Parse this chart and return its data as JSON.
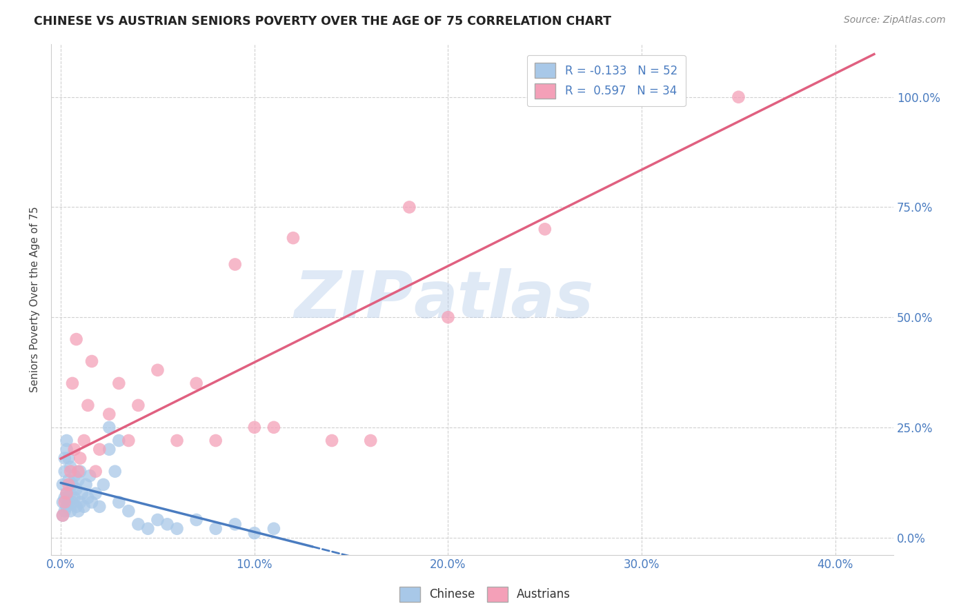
{
  "title": "CHINESE VS AUSTRIAN SENIORS POVERTY OVER THE AGE OF 75 CORRELATION CHART",
  "source": "Source: ZipAtlas.com",
  "xlabel_ticks": [
    "0.0%",
    "10.0%",
    "20.0%",
    "30.0%",
    "40.0%"
  ],
  "xlabel_tick_vals": [
    0.0,
    0.1,
    0.2,
    0.3,
    0.4
  ],
  "ylabel": "Seniors Poverty Over the Age of 75",
  "ylabel_ticks": [
    "0.0%",
    "25.0%",
    "50.0%",
    "75.0%",
    "100.0%"
  ],
  "ylabel_tick_vals": [
    0.0,
    0.25,
    0.5,
    0.75,
    1.0
  ],
  "xlim": [
    -0.005,
    0.43
  ],
  "ylim": [
    -0.04,
    1.12
  ],
  "chinese_color": "#a8c8e8",
  "austrian_color": "#f4a0b8",
  "chinese_line_color": "#4a7cc0",
  "austrian_line_color": "#e06080",
  "chinese_R": -0.133,
  "chinese_N": 52,
  "austrian_R": 0.597,
  "austrian_N": 34,
  "chinese_x": [
    0.001,
    0.001,
    0.001,
    0.002,
    0.002,
    0.002,
    0.002,
    0.003,
    0.003,
    0.003,
    0.003,
    0.004,
    0.004,
    0.004,
    0.005,
    0.005,
    0.005,
    0.006,
    0.006,
    0.007,
    0.007,
    0.008,
    0.008,
    0.009,
    0.009,
    0.01,
    0.01,
    0.011,
    0.012,
    0.013,
    0.014,
    0.015,
    0.016,
    0.018,
    0.02,
    0.022,
    0.025,
    0.028,
    0.03,
    0.035,
    0.04,
    0.045,
    0.05,
    0.055,
    0.06,
    0.07,
    0.08,
    0.09,
    0.1,
    0.11,
    0.025,
    0.03
  ],
  "chinese_y": [
    0.05,
    0.08,
    0.12,
    0.06,
    0.09,
    0.15,
    0.18,
    0.07,
    0.1,
    0.2,
    0.22,
    0.08,
    0.13,
    0.18,
    0.06,
    0.1,
    0.16,
    0.08,
    0.12,
    0.09,
    0.14,
    0.07,
    0.11,
    0.06,
    0.13,
    0.08,
    0.15,
    0.1,
    0.07,
    0.12,
    0.09,
    0.14,
    0.08,
    0.1,
    0.07,
    0.12,
    0.25,
    0.15,
    0.08,
    0.06,
    0.03,
    0.02,
    0.04,
    0.03,
    0.02,
    0.04,
    0.02,
    0.03,
    0.01,
    0.02,
    0.2,
    0.22
  ],
  "austrian_x": [
    0.001,
    0.002,
    0.003,
    0.004,
    0.005,
    0.006,
    0.007,
    0.008,
    0.009,
    0.01,
    0.012,
    0.014,
    0.016,
    0.018,
    0.02,
    0.025,
    0.03,
    0.035,
    0.04,
    0.05,
    0.06,
    0.07,
    0.08,
    0.09,
    0.1,
    0.11,
    0.12,
    0.14,
    0.16,
    0.18,
    0.2,
    0.25,
    0.3,
    0.35
  ],
  "austrian_y": [
    0.05,
    0.08,
    0.1,
    0.12,
    0.15,
    0.35,
    0.2,
    0.45,
    0.15,
    0.18,
    0.22,
    0.3,
    0.4,
    0.15,
    0.2,
    0.28,
    0.35,
    0.22,
    0.3,
    0.38,
    0.22,
    0.35,
    0.22,
    0.62,
    0.25,
    0.25,
    0.68,
    0.22,
    0.22,
    0.75,
    0.5,
    0.7,
    1.0,
    1.0
  ],
  "watermark_zip": "ZIP",
  "watermark_atlas": "atlas",
  "background_color": "#ffffff",
  "grid_color": "#d0d0d0",
  "right_axis_color": "#4a7cc0"
}
